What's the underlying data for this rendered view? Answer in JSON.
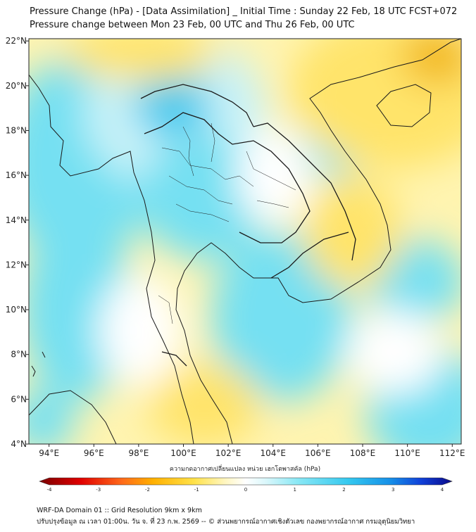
{
  "header": {
    "title_line1": "Pressure Change (hPa) - [Data Assimilation] _ Initial Time : Sunday 22 Feb, 18 UTC FCST+072",
    "title_line2": "Pressure change between Mon 23 Feb, 00 UTC and Thu 26 Feb, 00 UTC"
  },
  "map": {
    "lon_ticks": [
      {
        "lon": 94,
        "label": "94°E"
      },
      {
        "lon": 96,
        "label": "96°E"
      },
      {
        "lon": 98,
        "label": "98°E"
      },
      {
        "lon": 100,
        "label": "100°E"
      },
      {
        "lon": 102,
        "label": "102°E"
      },
      {
        "lon": 104,
        "label": "104°E"
      },
      {
        "lon": 106,
        "label": "106°E"
      },
      {
        "lon": 108,
        "label": "108°E"
      },
      {
        "lon": 110,
        "label": "110°E"
      },
      {
        "lon": 112,
        "label": "112°E"
      }
    ],
    "lat_ticks": [
      {
        "lat": 4,
        "label": "4°N"
      },
      {
        "lat": 6,
        "label": "6°N"
      },
      {
        "lat": 8,
        "label": "8°N"
      },
      {
        "lat": 10,
        "label": "10°N"
      },
      {
        "lat": 12,
        "label": "12°N"
      },
      {
        "lat": 14,
        "label": "14°N"
      },
      {
        "lat": 16,
        "label": "16°N"
      },
      {
        "lat": 18,
        "label": "18°N"
      },
      {
        "lat": 20,
        "label": "20°N"
      },
      {
        "lat": 22,
        "label": "22°N"
      }
    ],
    "colors": {
      "strong_rise": "#f2b718",
      "rise": "#ffe46b",
      "slight_rise": "#fff4b0",
      "neutral": "#ffffff",
      "slight_fall": "#c9f2f8",
      "fall": "#74e0f2",
      "strong_fall": "#3fc9ee",
      "border": "#1a1a1a"
    }
  },
  "colorbar": {
    "title": "ความกดอากาศเปลี่ยนแปลง หน่วย เฮกโตพาสคัล (hPa)",
    "tick_labels": [
      {
        "value": -4,
        "label": "-4"
      },
      {
        "value": -3,
        "label": "-3"
      },
      {
        "value": -2,
        "label": "-2"
      },
      {
        "value": -1,
        "label": "-1"
      },
      {
        "value": 0,
        "label": "0"
      },
      {
        "value": 1,
        "label": "1"
      },
      {
        "value": 2,
        "label": "2"
      },
      {
        "value": 3,
        "label": "3"
      },
      {
        "value": 4,
        "label": "4"
      }
    ],
    "min": -4,
    "max": 4,
    "stops": [
      {
        "value": -4,
        "color": "#7a0000"
      },
      {
        "value": -3.2,
        "color": "#e00000"
      },
      {
        "value": -2.4,
        "color": "#ff6a1a"
      },
      {
        "value": -1.8,
        "color": "#ffb000"
      },
      {
        "value": -1,
        "color": "#ffe24a"
      },
      {
        "value": -0.4,
        "color": "#fff6c0"
      },
      {
        "value": 0,
        "color": "#ffffff"
      },
      {
        "value": 0.4,
        "color": "#d9f7fb"
      },
      {
        "value": 1,
        "color": "#8ae8f5"
      },
      {
        "value": 2,
        "color": "#34c8ef"
      },
      {
        "value": 2.8,
        "color": "#1690e8"
      },
      {
        "value": 3.4,
        "color": "#1040d8"
      },
      {
        "value": 4,
        "color": "#0a0a8a"
      }
    ]
  },
  "footer": {
    "line1": "WRF-DA Domain 01 :: Grid Resolution 9km x 9km",
    "line2": "ปรับปรุงข้อมูล ณ เวลา 01:00น. วัน จ. ที่ 23 ก.พ. 2569 -- © ส่วนพยากรณ์อากาศเชิงตัวเลข กองพยากรณ์อากาศ กรมอุตุนิยมวิทยา"
  }
}
